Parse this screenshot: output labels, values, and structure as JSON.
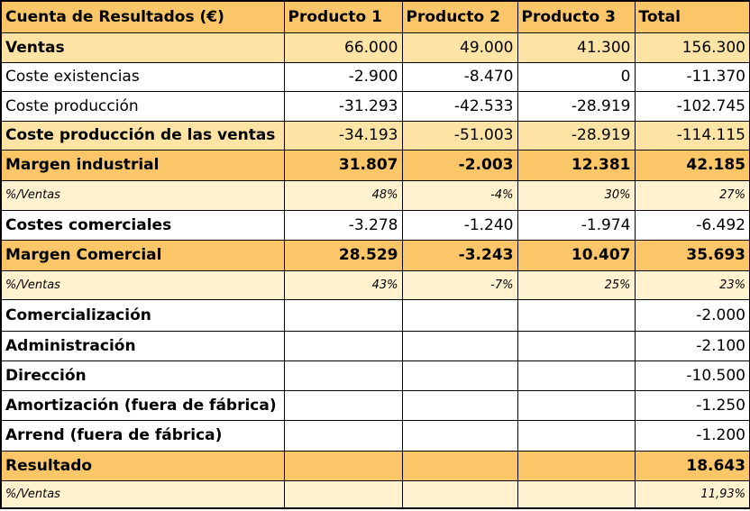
{
  "header": [
    "Cuenta de Resultados (€)",
    "Producto 1",
    "Producto 2",
    "Producto 3",
    "Total"
  ],
  "rows": [
    {
      "label": "Ventas",
      "v": [
        "66.000",
        "49.000",
        "41.300",
        "156.300"
      ]
    },
    {
      "label": "Coste existencias",
      "v": [
        "-2.900",
        "-8.470",
        "0",
        "-11.370"
      ]
    },
    {
      "label": "Coste producción",
      "v": [
        "-31.293",
        "-42.533",
        "-28.919",
        "-102.745"
      ]
    },
    {
      "label": "Coste producción de las ventas",
      "v": [
        "-34.193",
        "-51.003",
        "-28.919",
        "-114.115"
      ]
    },
    {
      "label": "Margen industrial",
      "v": [
        "31.807",
        "-2.003",
        "12.381",
        "42.185"
      ]
    },
    {
      "label": "%/Ventas",
      "v": [
        "48%",
        "-4%",
        "30%",
        "27%"
      ]
    },
    {
      "label": "Costes comerciales",
      "v": [
        "-3.278",
        "-1.240",
        "-1.974",
        "-6.492"
      ]
    },
    {
      "label": "Margen Comercial",
      "v": [
        "28.529",
        "-3.243",
        "10.407",
        "35.693"
      ]
    },
    {
      "label": "%/Ventas",
      "v": [
        "43%",
        "-7%",
        "25%",
        "23%"
      ]
    },
    {
      "label": "Comercialización",
      "v": [
        "",
        "",
        "",
        "-2.000"
      ]
    },
    {
      "label": "Administración",
      "v": [
        "",
        "",
        "",
        "-2.100"
      ]
    },
    {
      "label": "Dirección",
      "v": [
        "",
        "",
        "",
        "-10.500"
      ]
    },
    {
      "label": "Amortización (fuera de fábrica)",
      "v": [
        "",
        "",
        "",
        "-1.250"
      ]
    },
    {
      "label": "Arrend (fuera de fábrica)",
      "v": [
        "",
        "",
        "",
        "-1.200"
      ]
    },
    {
      "label": "Resultado",
      "v": [
        "",
        "",
        "",
        "18.643"
      ]
    },
    {
      "label": "%/Ventas",
      "v": [
        "",
        "",
        "",
        "11,93%"
      ]
    }
  ],
  "colors": {
    "header_fill": "#fbc667",
    "mid_fill": "#fde4a5",
    "light_fill": "#fef2cf"
  }
}
